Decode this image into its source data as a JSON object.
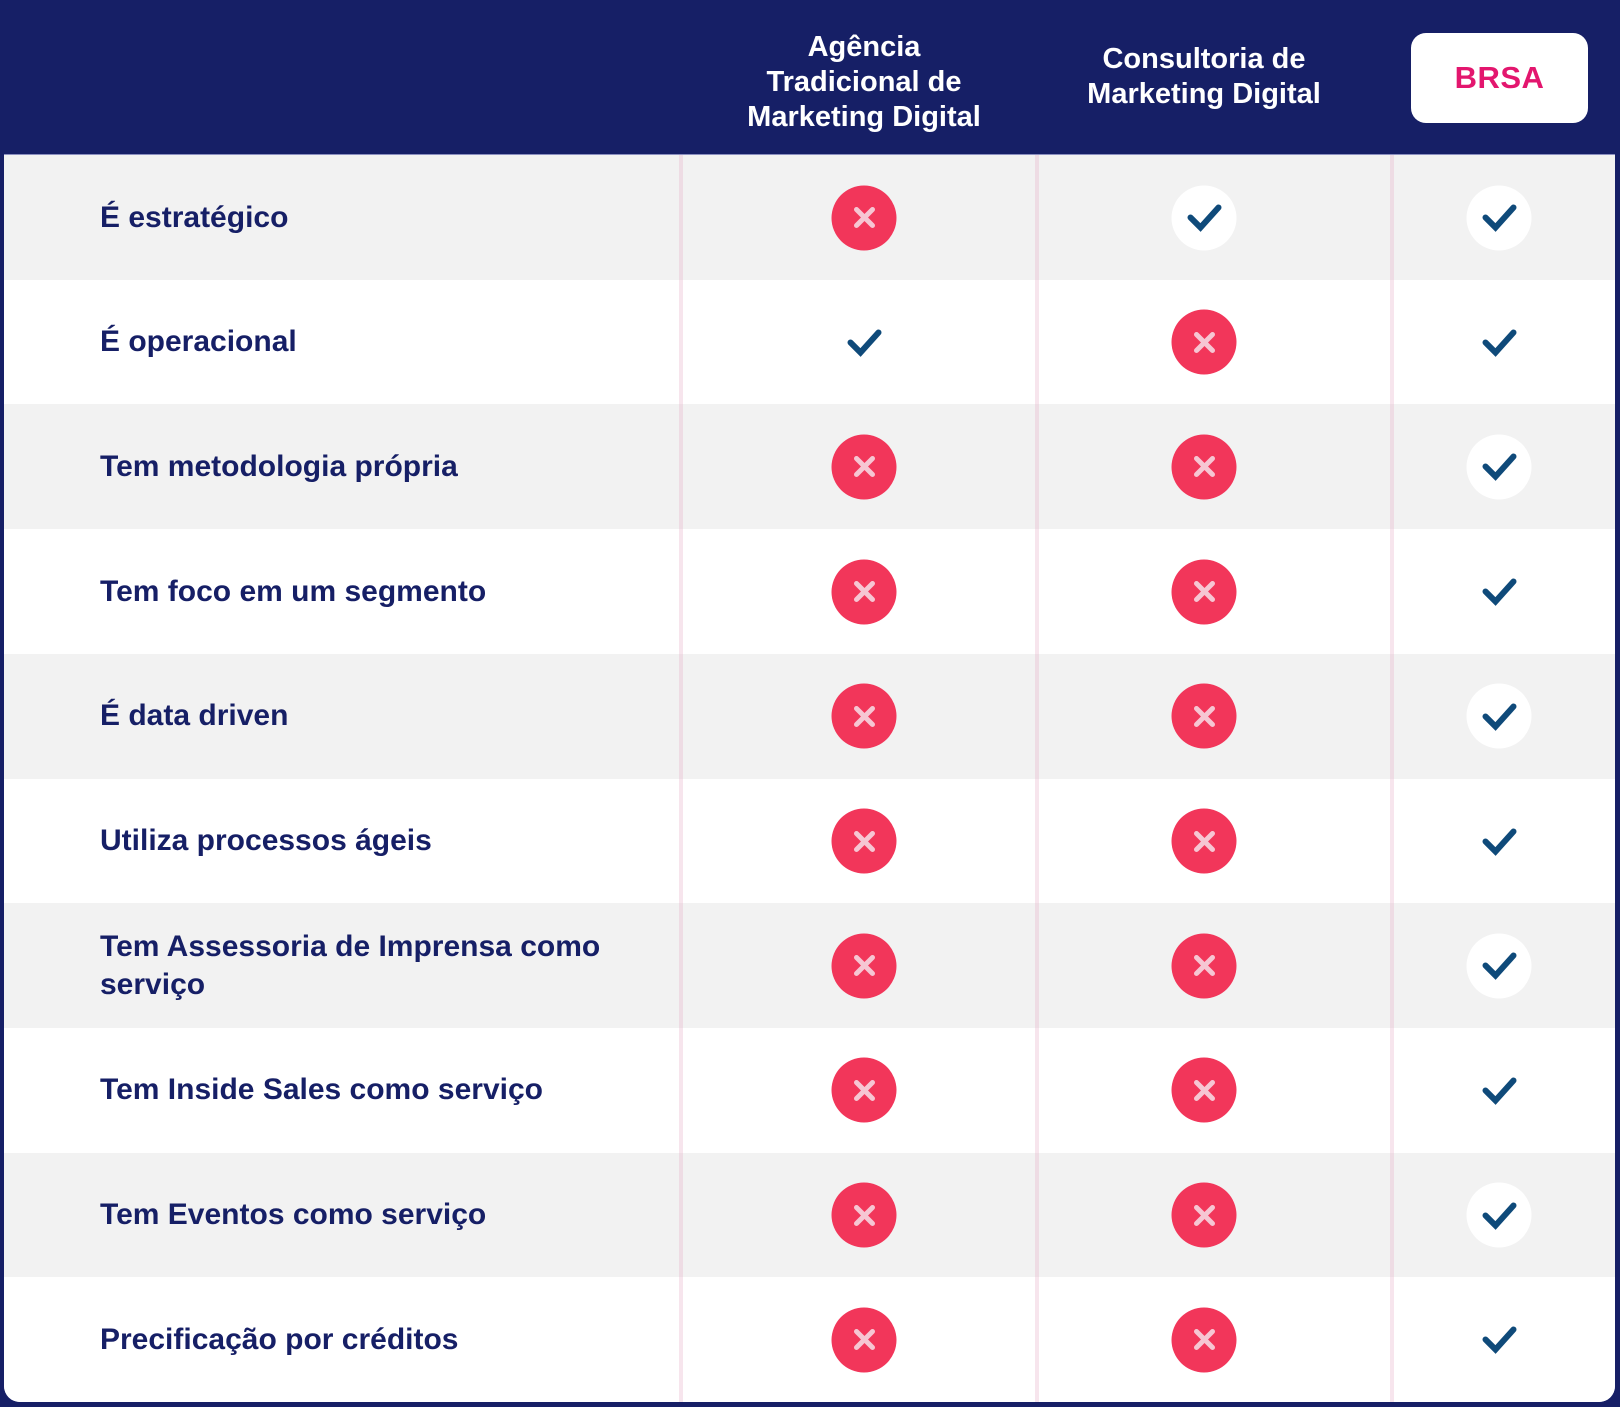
{
  "header": {
    "columns": [
      {
        "label": "Agência\nTradicional de\nMarketing Digital"
      },
      {
        "label": "Consultoria de\nMarketing Digital"
      },
      {
        "label": "BRSA",
        "highlighted": true
      }
    ]
  },
  "colors": {
    "navy": "#161f66",
    "brand_pink": "#e3166e",
    "no_red": "#f2365a",
    "check_blue": "#0f4a7a",
    "row_grey": "#f2f2f2"
  },
  "icons": {
    "yes": "check-icon",
    "no": "x-circle-icon"
  },
  "rows": [
    {
      "label": "É estratégico",
      "values": [
        "no",
        "yes",
        "yes"
      ]
    },
    {
      "label": "É operacional",
      "values": [
        "yes",
        "no",
        "yes"
      ]
    },
    {
      "label": "Tem metodologia própria",
      "values": [
        "no",
        "no",
        "yes"
      ]
    },
    {
      "label": "Tem foco em um segmento",
      "values": [
        "no",
        "no",
        "yes"
      ]
    },
    {
      "label": "É data driven",
      "values": [
        "no",
        "no",
        "yes"
      ]
    },
    {
      "label": "Utiliza processos ágeis",
      "values": [
        "no",
        "no",
        "yes"
      ]
    },
    {
      "label": "Tem Assessoria de Imprensa como serviço",
      "values": [
        "no",
        "no",
        "yes"
      ]
    },
    {
      "label": "Tem Inside Sales como serviço",
      "values": [
        "no",
        "no",
        "yes"
      ]
    },
    {
      "label": "Tem Eventos como serviço",
      "values": [
        "no",
        "no",
        "yes"
      ]
    },
    {
      "label": "Precificação por créditos",
      "values": [
        "no",
        "no",
        "yes"
      ]
    }
  ]
}
